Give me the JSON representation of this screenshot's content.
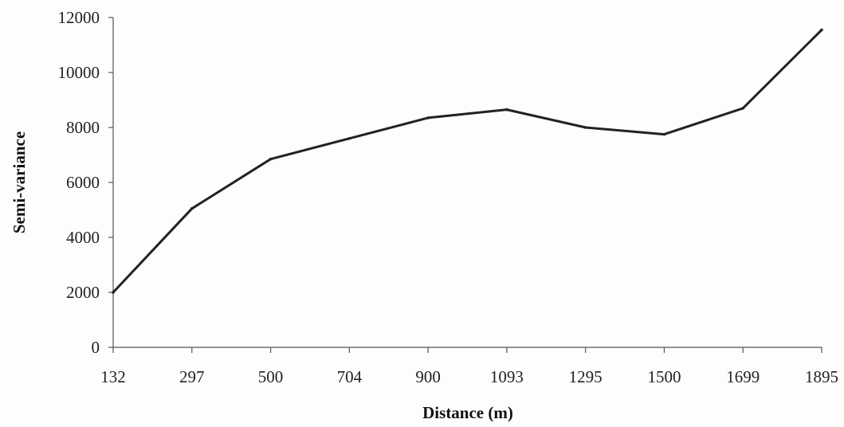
{
  "chart_data": {
    "type": "line",
    "title": "",
    "xlabel": "Distance (m)",
    "ylabel": "Semi-variance",
    "categories": [
      "132",
      "297",
      "500",
      "704",
      "900",
      "1093",
      "1295",
      "1500",
      "1699",
      "1895"
    ],
    "series": [
      {
        "values": [
          2000,
          5050,
          6850,
          7600,
          8350,
          8650,
          8000,
          7750,
          8700,
          11550
        ]
      }
    ],
    "yticks": [
      0,
      2000,
      4000,
      6000,
      8000,
      10000,
      12000
    ],
    "ytick_labels": [
      "0",
      "2000",
      "4000",
      "6000",
      "8000",
      "10000",
      "12000"
    ],
    "ylim": [
      0,
      12000
    ],
    "grid": false,
    "legend": "none",
    "colors": {
      "line": "#222222",
      "axis": "#555555",
      "text": "#222222"
    }
  }
}
